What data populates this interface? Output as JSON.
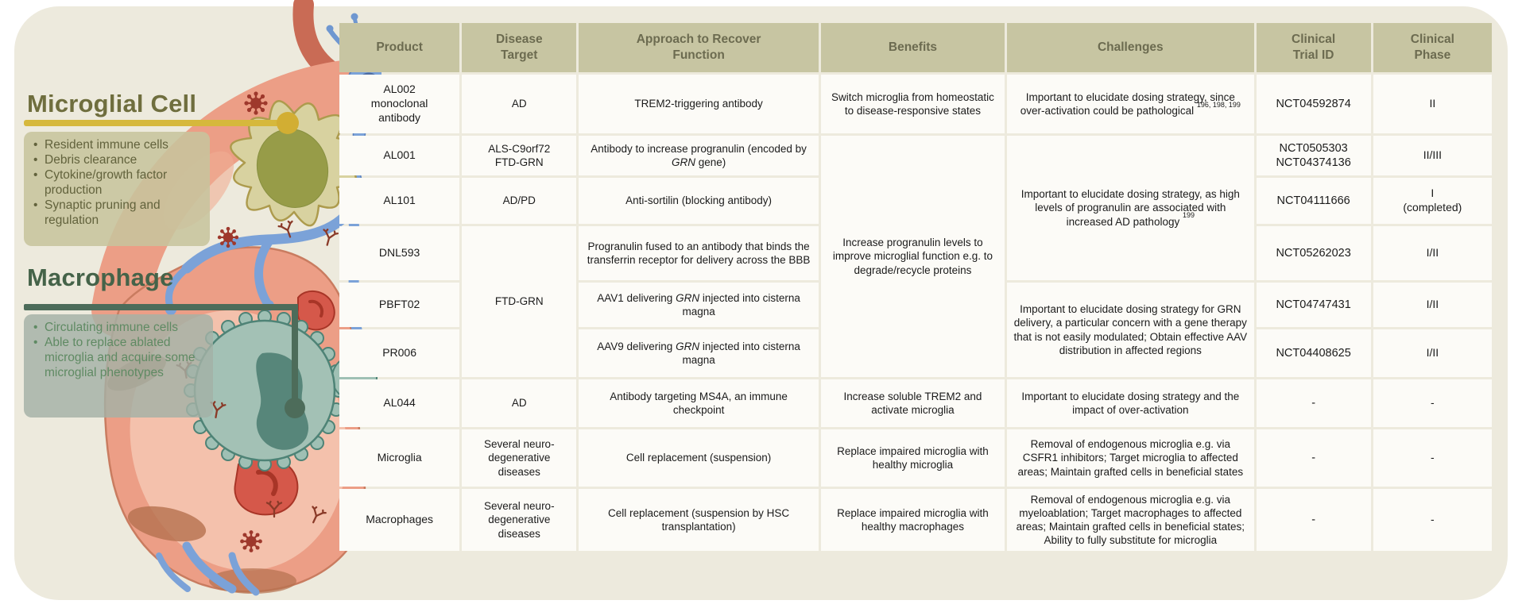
{
  "colors": {
    "panel_background": "#edeadd",
    "table_header_background": "#c7c5a2",
    "table_header_text": "#6c6b50",
    "cell_background": "#fcfbf7",
    "microglial_accent": "#d6b83c",
    "microglial_title": "#6f6e3e",
    "macrophage_accent": "#4d6c5a",
    "macrophage_title": "#456349",
    "virus_red": "#9e382c",
    "neuron_blue": "#7ba2d8",
    "microglia_olive": "#d8d2a0",
    "macrophage_teal": "#9fc0b4",
    "tissue_pink": "#ec9e86"
  },
  "illustration": {
    "microglial": {
      "title": "Microglial Cell",
      "bullets": [
        "Resident immune cells",
        "Debris clearance",
        "Cytokine/growth factor production",
        "Synaptic pruning and regulation"
      ]
    },
    "macrophage": {
      "title": "Macrophage",
      "bullets": [
        "Circulating immune cells",
        "Able to replace ablated microglia and acquire some microglial phenotypes"
      ]
    }
  },
  "table": {
    "header": {
      "product": "Product",
      "disease": "Disease\nTarget",
      "approach": "Approach to Recover\nFunction",
      "benefits": "Benefits",
      "challenges": "Challenges",
      "trial": "Clinical\nTrial ID",
      "phase": "Clinical\nPhase"
    },
    "merged": {
      "disease_ftd_grn": "FTD-GRN",
      "benefits_progranulin": "Increase progranulin levels to improve microglial function e.g. to degrade/recycle proteins",
      "challenges_progranulin": [
        {
          "t": "Important to elucidate dosing strategy, as high levels of progranulin are associated with increased AD pathology "
        },
        {
          "t": "199",
          "sup": true
        }
      ],
      "challenges_grn_delivery": "Important to elucidate dosing strategy for GRN delivery, a particular concern with a gene therapy that is not easily modulated; Obtain effective AAV distribution in affected regions"
    },
    "rows": {
      "al002": {
        "product": "AL002\nmonoclonal\nantibody",
        "disease": "AD",
        "approach": "TREM2-triggering antibody",
        "benefits": "Switch microglia from homeostatic to disease-responsive states",
        "challenges": [
          {
            "t": "Important to elucidate dosing strategy, since over-activation could be pathological "
          },
          {
            "t": "196, 198, 199",
            "sup": true
          }
        ],
        "trial": "NCT04592874",
        "phase": "II"
      },
      "al001": {
        "product": "AL001",
        "disease": "ALS-C9orf72\nFTD-GRN",
        "approach": [
          {
            "t": "Antibody to increase progranulin (encoded by "
          },
          {
            "t": "GRN",
            "i": true
          },
          {
            "t": " gene)"
          }
        ],
        "trial": "NCT0505303\nNCT04374136",
        "phase": "II/III"
      },
      "al101": {
        "product": "AL101",
        "disease": "AD/PD",
        "approach": "Anti-sortilin (blocking antibody)",
        "trial": "NCT04111666",
        "phase": "I\n(completed)"
      },
      "dnl593": {
        "product": "DNL593",
        "approach": "Progranulin fused to an antibody that binds the transferrin receptor for delivery across the BBB",
        "trial": "NCT05262023",
        "phase": "I/II"
      },
      "pbft02": {
        "product": "PBFT02",
        "approach": [
          {
            "t": "AAV1 delivering "
          },
          {
            "t": "GRN",
            "i": true
          },
          {
            "t": " injected into cisterna magna"
          }
        ],
        "trial": "NCT04747431",
        "phase": "I/II"
      },
      "pr006": {
        "product": "PR006",
        "approach": [
          {
            "t": "AAV9 delivering "
          },
          {
            "t": "GRN",
            "i": true
          },
          {
            "t": " injected into cisterna magna"
          }
        ],
        "trial": "NCT04408625",
        "phase": "I/II"
      },
      "al044": {
        "product": "AL044",
        "disease": "AD",
        "approach": "Antibody targeting MS4A, an immune checkpoint",
        "benefits": "Increase soluble TREM2 and activate microglia",
        "challenges": "Important to elucidate dosing strategy and the impact of over-activation",
        "trial": "-",
        "phase": "-"
      },
      "microglia": {
        "product": "Microglia",
        "disease": "Several neuro-\ndegenerative\ndiseases",
        "approach": "Cell replacement (suspension)",
        "benefits": "Replace impaired microglia with healthy microglia",
        "challenges": "Removal of endogenous microglia e.g. via CSFR1 inhibitors; Target microglia to affected areas; Maintain grafted cells in beneficial states",
        "trial": "-",
        "phase": "-"
      },
      "macrophages": {
        "product": "Macrophages",
        "disease": "Several neuro-\ndegenerative\ndiseases",
        "approach": "Cell replacement (suspension by HSC transplantation)",
        "benefits": "Replace impaired microglia with healthy macrophages",
        "challenges": "Removal of endogenous microglia e.g. via myeloablation; Target macrophages to affected areas; Maintain grafted cells in beneficial states; Ability to fully substitute for microglia",
        "trial": "-",
        "phase": "-"
      }
    }
  }
}
